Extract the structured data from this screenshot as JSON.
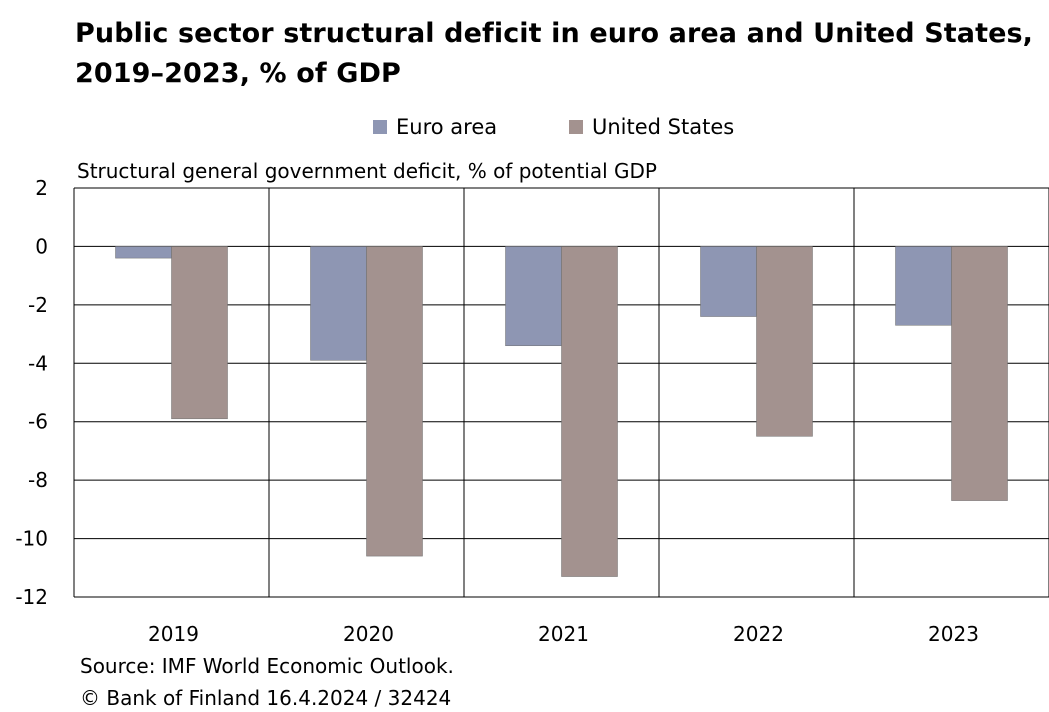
{
  "title": "Public sector structural deficit in euro area and United States, 2019–2023, % of GDP",
  "subtitle": "Structural general government deficit, % of potential GDP",
  "source": "Source: IMF World Economic Outlook.",
  "copyright": "© Bank of Finland 16.4.2024 / 32424",
  "colors": {
    "euro_area": "#8e96b3",
    "united_states": "#a3928f",
    "grid": "#000000"
  },
  "chart_data": {
    "type": "bar",
    "title": "Public sector structural deficit in euro area and United States, 2019–2023, % of GDP",
    "ylabel": "Structural general government deficit, % of potential GDP",
    "xlabel": "",
    "categories": [
      "2019",
      "2020",
      "2021",
      "2022",
      "2023"
    ],
    "series": [
      {
        "name": "Euro area",
        "values": [
          -0.4,
          -3.9,
          -3.4,
          -2.4,
          -2.7
        ]
      },
      {
        "name": "United States",
        "values": [
          -5.9,
          -10.6,
          -11.3,
          -6.5,
          -8.7
        ]
      }
    ],
    "ylim": [
      -12,
      2
    ],
    "yticks": [
      "2",
      "0",
      "-2",
      "-4",
      "-6",
      "-8",
      "-10",
      "-12"
    ],
    "grid": true,
    "legend_position": "top"
  }
}
